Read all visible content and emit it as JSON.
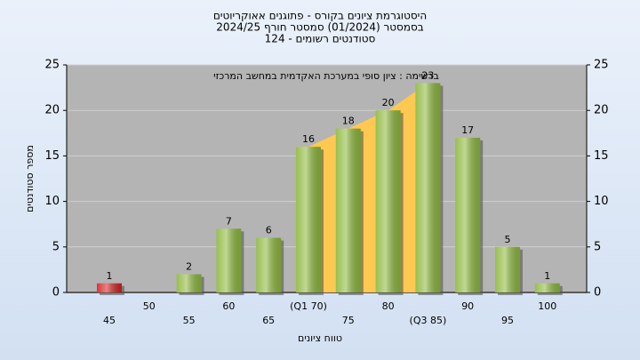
{
  "chart_data": {
    "type": "bar",
    "title": "היסטוגרמת ציונים בקורס - פתוגנים אאוקריוטים",
    "subtitle": "בסמסטר  (01/2024)  סמסטר חורף 2024/25",
    "subtitle2": "סטודנטים רשומים - 124",
    "annotation": "ברשימה : ציון סופי במערכת האקדמית במחשב המרכזי",
    "xlabel": "טווח ציונים",
    "ylabel": "מספר סטודנטים",
    "categories": [
      "45",
      "50",
      "55",
      "60",
      "65",
      "(Q1 70)",
      "75",
      "80",
      "(Q3 85)",
      "90",
      "95",
      "100"
    ],
    "values": [
      1,
      0,
      2,
      7,
      6,
      16,
      18,
      20,
      23,
      17,
      5,
      1
    ],
    "colors": [
      "#d42020",
      "#8db83c",
      "#8db83c",
      "#8db83c",
      "#8db83c",
      "#8db83c",
      "#8db83c",
      "#8db83c",
      "#8db83c",
      "#8db83c",
      "#8db83c",
      "#8db83c"
    ],
    "highlight": {
      "from": 5,
      "to": 8,
      "color": "#ffc850"
    },
    "ylim": [
      0,
      25
    ],
    "yticks": [
      0,
      5,
      10,
      15,
      20,
      25
    ],
    "y2lim": [
      0,
      25
    ],
    "y2ticks": [
      0,
      5,
      10,
      15,
      20,
      25
    ],
    "grid": true
  }
}
